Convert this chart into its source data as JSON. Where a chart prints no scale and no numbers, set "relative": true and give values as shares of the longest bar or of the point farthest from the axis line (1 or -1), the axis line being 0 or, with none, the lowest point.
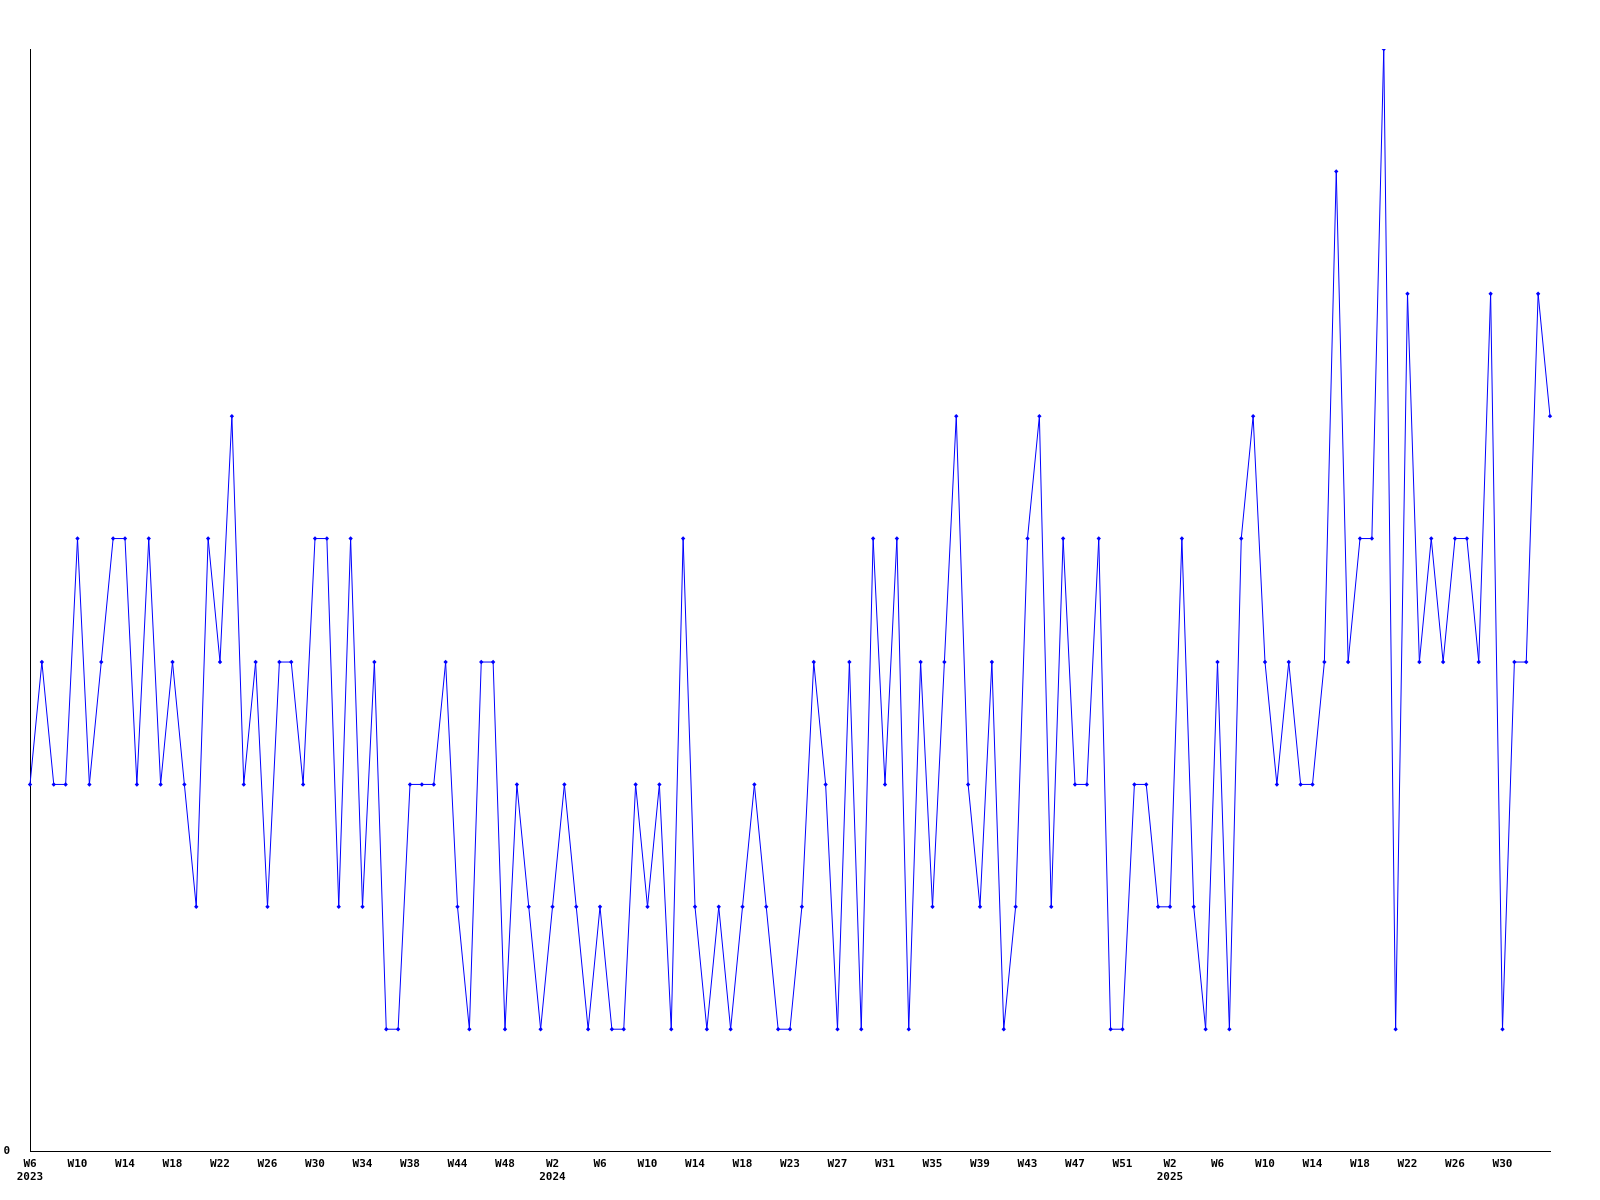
{
  "chart_data": {
    "type": "line",
    "relative": true,
    "marker": "diamond",
    "line_style": "solid",
    "grid": false,
    "legend": false,
    "annotations": [
      "0"
    ],
    "categories": [
      "W6\n2023",
      null,
      null,
      null,
      "W10",
      null,
      null,
      null,
      "W14",
      null,
      null,
      null,
      "W18",
      null,
      null,
      null,
      "W22",
      null,
      null,
      null,
      "W26",
      null,
      null,
      null,
      "W30",
      null,
      null,
      null,
      "W34",
      null,
      null,
      null,
      "W38",
      null,
      null,
      null,
      "W44",
      null,
      null,
      null,
      "W48",
      null,
      null,
      null,
      "W2\n2024",
      null,
      null,
      null,
      "W6",
      null,
      null,
      null,
      "W10",
      null,
      null,
      null,
      "W14",
      null,
      null,
      null,
      "W18",
      null,
      null,
      null,
      "W23",
      null,
      null,
      null,
      "W27",
      null,
      null,
      null,
      "W31",
      null,
      null,
      null,
      "W35",
      null,
      null,
      null,
      "W39",
      null,
      null,
      null,
      "W43",
      null,
      null,
      null,
      "W47",
      null,
      null,
      null,
      "W51",
      null,
      null,
      null,
      "W2\n2025",
      null,
      null,
      null,
      "W6",
      null,
      null,
      null,
      "W10",
      null,
      null,
      null,
      "W14",
      null,
      null,
      null,
      "W18",
      null,
      null,
      null,
      "W22",
      null,
      null,
      null,
      "W26",
      null,
      null,
      null,
      "W30",
      null,
      null,
      null,
      null
    ],
    "series": [
      {
        "color": "#0000ff",
        "values": [
          0.333,
          0.444,
          0.333,
          0.333,
          0.556,
          0.333,
          0.444,
          0.556,
          0.556,
          0.333,
          0.556,
          0.333,
          0.444,
          0.333,
          0.222,
          0.556,
          0.444,
          0.667,
          0.333,
          0.444,
          0.222,
          0.444,
          0.444,
          0.333,
          0.556,
          0.556,
          0.222,
          0.556,
          0.222,
          0.444,
          0.111,
          0.111,
          0.333,
          0.333,
          0.333,
          0.444,
          0.222,
          0.111,
          0.444,
          0.444,
          0.111,
          0.333,
          0.222,
          0.111,
          0.222,
          0.333,
          0.222,
          0.111,
          0.222,
          0.111,
          0.111,
          0.333,
          0.222,
          0.333,
          0.111,
          0.556,
          0.222,
          0.111,
          0.222,
          0.111,
          0.222,
          0.333,
          0.222,
          0.111,
          0.111,
          0.222,
          0.444,
          0.333,
          0.111,
          0.444,
          0.111,
          0.556,
          0.333,
          0.556,
          0.111,
          0.444,
          0.222,
          0.444,
          0.667,
          0.333,
          0.222,
          0.444,
          0.111,
          0.222,
          0.556,
          0.667,
          0.222,
          0.556,
          0.333,
          0.333,
          0.556,
          0.111,
          0.111,
          0.333,
          0.333,
          0.222,
          0.222,
          0.556,
          0.222,
          0.111,
          0.444,
          0.111,
          0.556,
          0.667,
          0.444,
          0.333,
          0.444,
          0.333,
          0.333,
          0.444,
          0.889,
          0.444,
          0.556,
          0.556,
          1,
          0.111,
          0.778,
          0.444,
          0.556,
          0.444,
          0.556,
          0.556,
          0.444,
          0.778,
          0.111,
          0.444,
          0.444,
          0.778,
          0.667
        ]
      }
    ]
  }
}
